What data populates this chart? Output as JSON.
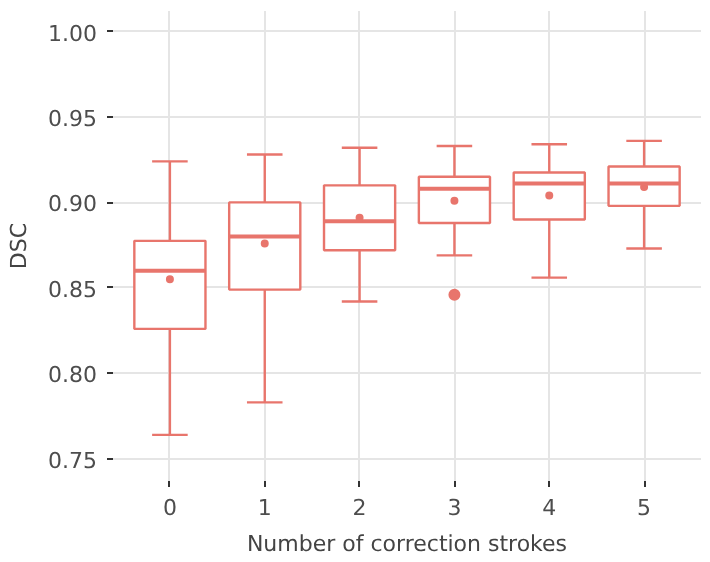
{
  "chart_data": {
    "type": "box",
    "xlabel": "Number of correction strokes",
    "ylabel": "DSC",
    "categories": [
      "0",
      "1",
      "2",
      "3",
      "4",
      "5"
    ],
    "color": "#e8756c",
    "grid": true,
    "ylim": [
      0.737,
      1.012
    ],
    "yticks": [
      {
        "value": 0.75,
        "label": "0.75"
      },
      {
        "value": 0.8,
        "label": "0.80"
      },
      {
        "value": 0.85,
        "label": "0.85"
      },
      {
        "value": 0.9,
        "label": "0.90"
      },
      {
        "value": 0.95,
        "label": "0.95"
      },
      {
        "value": 1.0,
        "label": "1.00"
      }
    ],
    "boxes": [
      {
        "low": 0.764,
        "q1": 0.826,
        "median": 0.86,
        "q3": 0.8775,
        "high": 0.924,
        "mean": 0.855
      },
      {
        "low": 0.783,
        "q1": 0.849,
        "median": 0.88,
        "q3": 0.9,
        "high": 0.928,
        "mean": 0.876
      },
      {
        "low": 0.842,
        "q1": 0.872,
        "median": 0.889,
        "q3": 0.91,
        "high": 0.932,
        "mean": 0.891
      },
      {
        "low": 0.869,
        "q1": 0.888,
        "median": 0.908,
        "q3": 0.915,
        "high": 0.933,
        "mean": 0.901,
        "outliers": [
          0.846
        ]
      },
      {
        "low": 0.856,
        "q1": 0.89,
        "median": 0.911,
        "q3": 0.9175,
        "high": 0.934,
        "mean": 0.904
      },
      {
        "low": 0.873,
        "q1": 0.898,
        "median": 0.911,
        "q3": 0.921,
        "high": 0.936,
        "mean": 0.909
      }
    ]
  }
}
